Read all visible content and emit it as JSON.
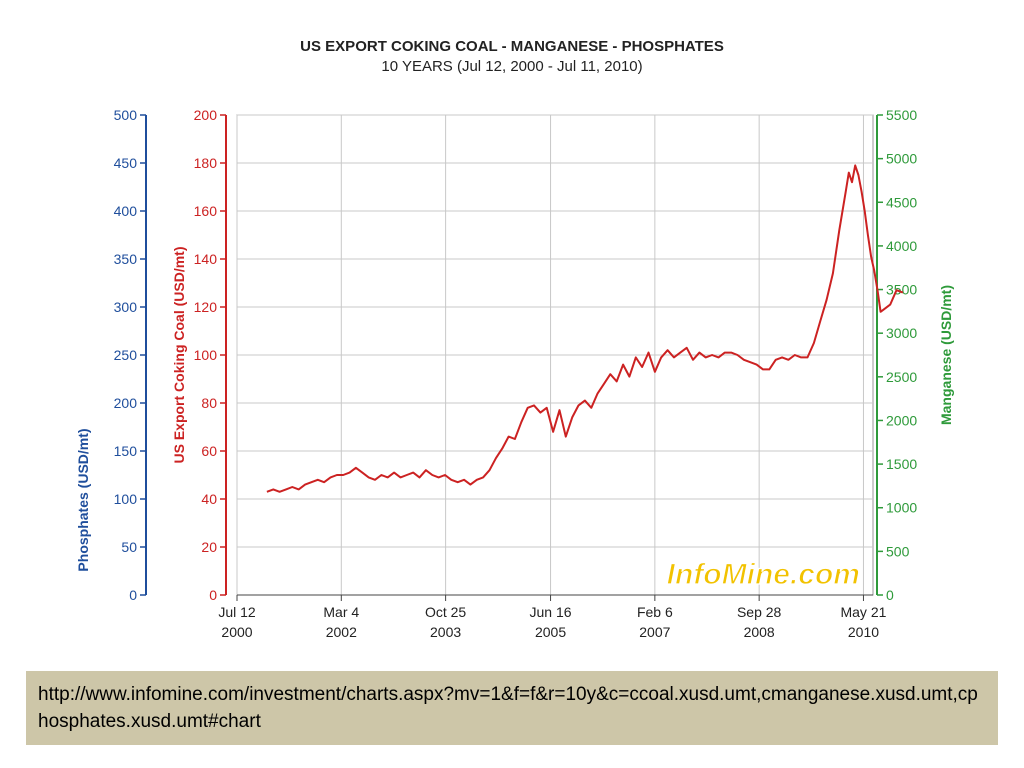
{
  "chart_data": {
    "type": "line",
    "title": "US EXPORT COKING COAL - MANGANESE - PHOSPHATES",
    "subtitle": "10 YEARS (Jul 12, 2000 - Jul 11, 2010)",
    "watermark": "InfoMine.com",
    "x_ticks": [
      {
        "t": 2000.53,
        "line1": "Jul 12",
        "line2": "2000"
      },
      {
        "t": 2002.17,
        "line1": "Mar 4",
        "line2": "2002"
      },
      {
        "t": 2003.81,
        "line1": "Oct 25",
        "line2": "2003"
      },
      {
        "t": 2005.46,
        "line1": "Jun 16",
        "line2": "2005"
      },
      {
        "t": 2007.1,
        "line1": "Feb 6",
        "line2": "2007"
      },
      {
        "t": 2008.74,
        "line1": "Sep 28",
        "line2": "2008"
      },
      {
        "t": 2010.38,
        "line1": "May 21",
        "line2": "2010"
      }
    ],
    "xlim": [
      2000.53,
      2010.53
    ],
    "axes": {
      "left_outer": {
        "label": "Phosphates (USD/mt)",
        "ylim": [
          0,
          500
        ],
        "ticks": [
          0,
          50,
          100,
          150,
          200,
          250,
          300,
          350,
          400,
          450,
          500
        ],
        "color": "#1f4e9c"
      },
      "left_inner": {
        "label": "US Export Coking Coal (USD/mt)",
        "ylim": [
          0,
          200
        ],
        "ticks": [
          0,
          20,
          40,
          60,
          80,
          100,
          120,
          140,
          160,
          180,
          200
        ],
        "color": "#cc2222"
      },
      "right": {
        "label": "Manganese (USD/mt)",
        "ylim": [
          0,
          5500
        ],
        "ticks": [
          0,
          500,
          1000,
          1500,
          2000,
          2500,
          3000,
          3500,
          4000,
          4500,
          5000,
          5500
        ],
        "color": "#2e9a3a"
      }
    },
    "grid": true,
    "series": [
      {
        "name": "US Export Coking Coal",
        "axis": "left_inner",
        "color": "#cc2222",
        "points": [
          [
            2001.0,
            43
          ],
          [
            2001.1,
            44
          ],
          [
            2001.2,
            43
          ],
          [
            2001.3,
            44
          ],
          [
            2001.4,
            45
          ],
          [
            2001.5,
            44
          ],
          [
            2001.6,
            46
          ],
          [
            2001.7,
            47
          ],
          [
            2001.8,
            48
          ],
          [
            2001.9,
            47
          ],
          [
            2002.0,
            49
          ],
          [
            2002.1,
            50
          ],
          [
            2002.2,
            50
          ],
          [
            2002.3,
            51
          ],
          [
            2002.4,
            53
          ],
          [
            2002.5,
            51
          ],
          [
            2002.6,
            49
          ],
          [
            2002.7,
            48
          ],
          [
            2002.8,
            50
          ],
          [
            2002.9,
            49
          ],
          [
            2003.0,
            51
          ],
          [
            2003.1,
            49
          ],
          [
            2003.2,
            50
          ],
          [
            2003.3,
            51
          ],
          [
            2003.4,
            49
          ],
          [
            2003.5,
            52
          ],
          [
            2003.6,
            50
          ],
          [
            2003.7,
            49
          ],
          [
            2003.8,
            50
          ],
          [
            2003.9,
            48
          ],
          [
            2004.0,
            47
          ],
          [
            2004.1,
            48
          ],
          [
            2004.2,
            46
          ],
          [
            2004.3,
            48
          ],
          [
            2004.4,
            49
          ],
          [
            2004.5,
            52
          ],
          [
            2004.6,
            57
          ],
          [
            2004.7,
            61
          ],
          [
            2004.8,
            66
          ],
          [
            2004.9,
            65
          ],
          [
            2005.0,
            72
          ],
          [
            2005.1,
            78
          ],
          [
            2005.2,
            79
          ],
          [
            2005.3,
            76
          ],
          [
            2005.4,
            78
          ],
          [
            2005.5,
            68
          ],
          [
            2005.6,
            77
          ],
          [
            2005.7,
            66
          ],
          [
            2005.8,
            74
          ],
          [
            2005.9,
            79
          ],
          [
            2006.0,
            81
          ],
          [
            2006.1,
            78
          ],
          [
            2006.2,
            84
          ],
          [
            2006.3,
            88
          ],
          [
            2006.4,
            92
          ],
          [
            2006.5,
            89
          ],
          [
            2006.6,
            96
          ],
          [
            2006.7,
            91
          ],
          [
            2006.8,
            99
          ],
          [
            2006.9,
            95
          ],
          [
            2007.0,
            101
          ],
          [
            2007.1,
            93
          ],
          [
            2007.2,
            99
          ],
          [
            2007.3,
            102
          ],
          [
            2007.4,
            99
          ],
          [
            2007.5,
            101
          ],
          [
            2007.6,
            103
          ],
          [
            2007.7,
            98
          ],
          [
            2007.8,
            101
          ],
          [
            2007.9,
            99
          ],
          [
            2008.0,
            100
          ],
          [
            2008.1,
            99
          ],
          [
            2008.2,
            101
          ],
          [
            2008.3,
            101
          ],
          [
            2008.4,
            100
          ],
          [
            2008.5,
            98
          ],
          [
            2008.6,
            97
          ],
          [
            2008.7,
            96
          ],
          [
            2008.8,
            94
          ],
          [
            2008.9,
            94
          ],
          [
            2009.0,
            98
          ],
          [
            2009.1,
            99
          ],
          [
            2009.2,
            98
          ],
          [
            2009.3,
            100
          ],
          [
            2009.4,
            99
          ],
          [
            2009.5,
            99
          ],
          [
            2009.6,
            105
          ],
          [
            2009.7,
            114
          ],
          [
            2009.8,
            123
          ],
          [
            2009.9,
            134
          ],
          [
            2010.0,
            152
          ],
          [
            2010.1,
            168
          ],
          [
            2010.15,
            176
          ],
          [
            2010.2,
            172
          ],
          [
            2010.25,
            179
          ],
          [
            2010.3,
            175
          ],
          [
            2010.35,
            168
          ],
          [
            2010.4,
            160
          ],
          [
            2010.45,
            150
          ],
          [
            2010.5,
            141
          ],
          [
            2010.55,
            135
          ],
          [
            2010.6,
            127
          ],
          [
            2010.65,
            118
          ],
          [
            2010.7,
            119
          ],
          [
            2010.8,
            121
          ],
          [
            2010.9,
            127
          ],
          [
            2011.0,
            126
          ]
        ]
      }
    ]
  },
  "url_text": "http://www.infomine.com/investment/charts.aspx?mv=1&f=f&r=10y&c=ccoal.xusd.umt,cmanganese.xusd.umt,cphosphates.xusd.umt#chart"
}
